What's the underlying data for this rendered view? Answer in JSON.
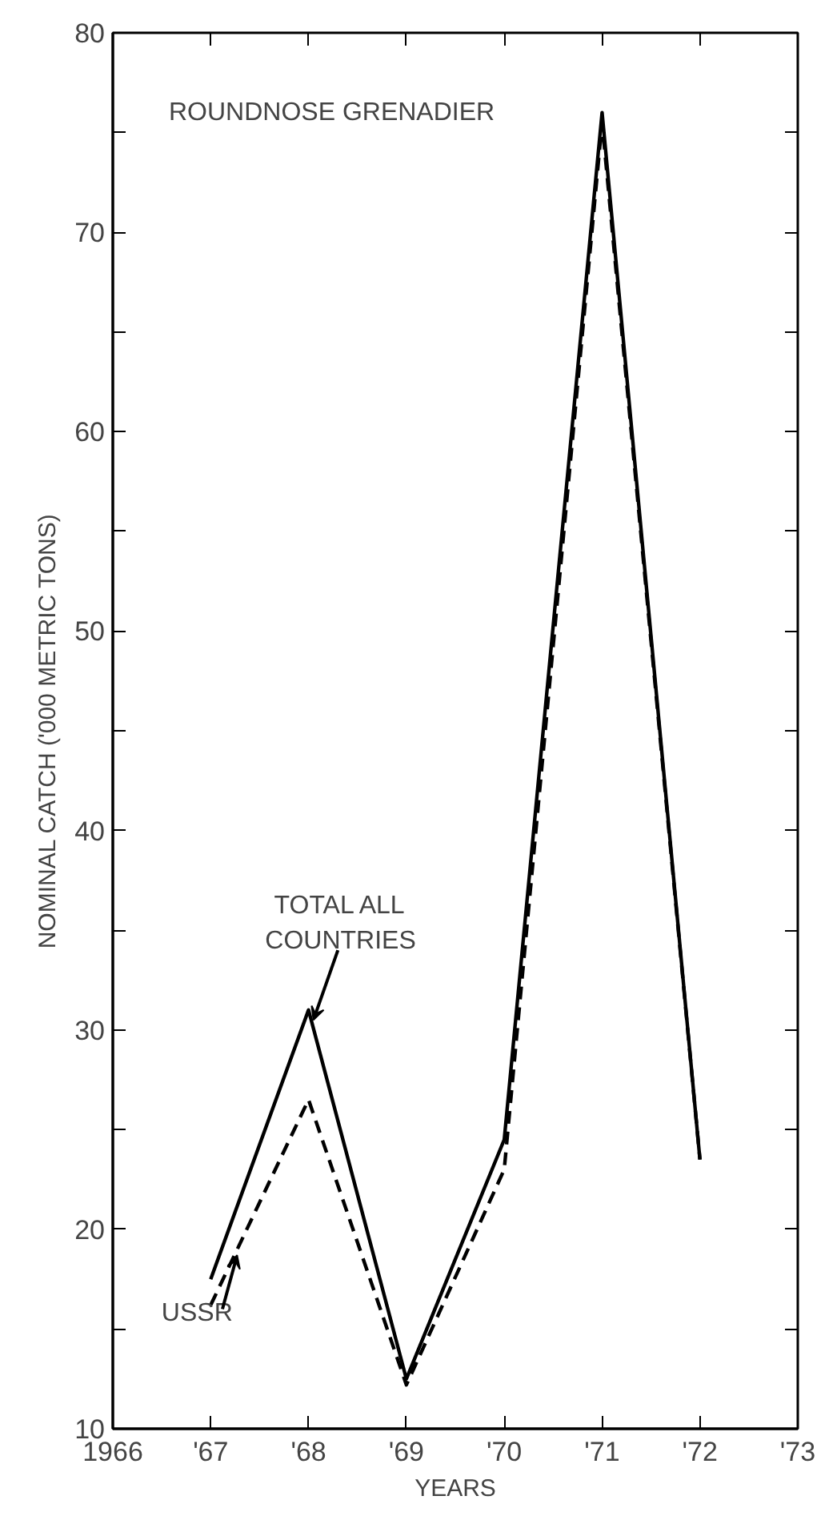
{
  "chart_data": {
    "type": "line",
    "title": "ROUNDNOSE GRENADIER",
    "xlabel": "YEARS",
    "ylabel": "NOMINAL CATCH ('000 METRIC TONS)",
    "x": [
      1967,
      1968,
      1969,
      1970,
      1971,
      1972
    ],
    "series": [
      {
        "color": "#000000",
        "line_style": "solid",
        "values": [
          17.5,
          31,
          12.5,
          24.5,
          76,
          23.5
        ]
      },
      {
        "color": "#000000",
        "line_style": "dashed",
        "values": [
          16.2,
          26.5,
          12.2,
          23,
          75.5,
          23.5
        ]
      }
    ],
    "xlim": [
      1966,
      1973
    ],
    "xticks": [
      1966,
      {
        "value": 1967,
        "label": "'67"
      },
      {
        "value": 1968,
        "label": "'68"
      },
      {
        "value": 1969,
        "label": "'69"
      },
      {
        "value": 1970,
        "label": "'70"
      },
      {
        "value": 1971,
        "label": "'71"
      },
      {
        "value": 1972,
        "label": "'72"
      },
      {
        "value": 1973,
        "label": "'73"
      }
    ],
    "ylim": [
      10,
      80
    ],
    "yticks": [
      10,
      {
        "value": 15,
        "label": null
      },
      20,
      {
        "value": 25,
        "label": null
      },
      30,
      {
        "value": 35,
        "label": null
      },
      40,
      {
        "value": 45,
        "label": null
      },
      50,
      {
        "value": 55,
        "label": null
      },
      60,
      {
        "value": 65,
        "label": null
      },
      70,
      {
        "value": 75,
        "label": null
      },
      80
    ],
    "annotations": [
      {
        "text": "TOTAL ALL COUNTRIES",
        "x": 1968,
        "y": 31
      },
      {
        "text": "USSR",
        "x": 1967.27,
        "y": 19
      }
    ],
    "grid": false,
    "marker": "none"
  }
}
